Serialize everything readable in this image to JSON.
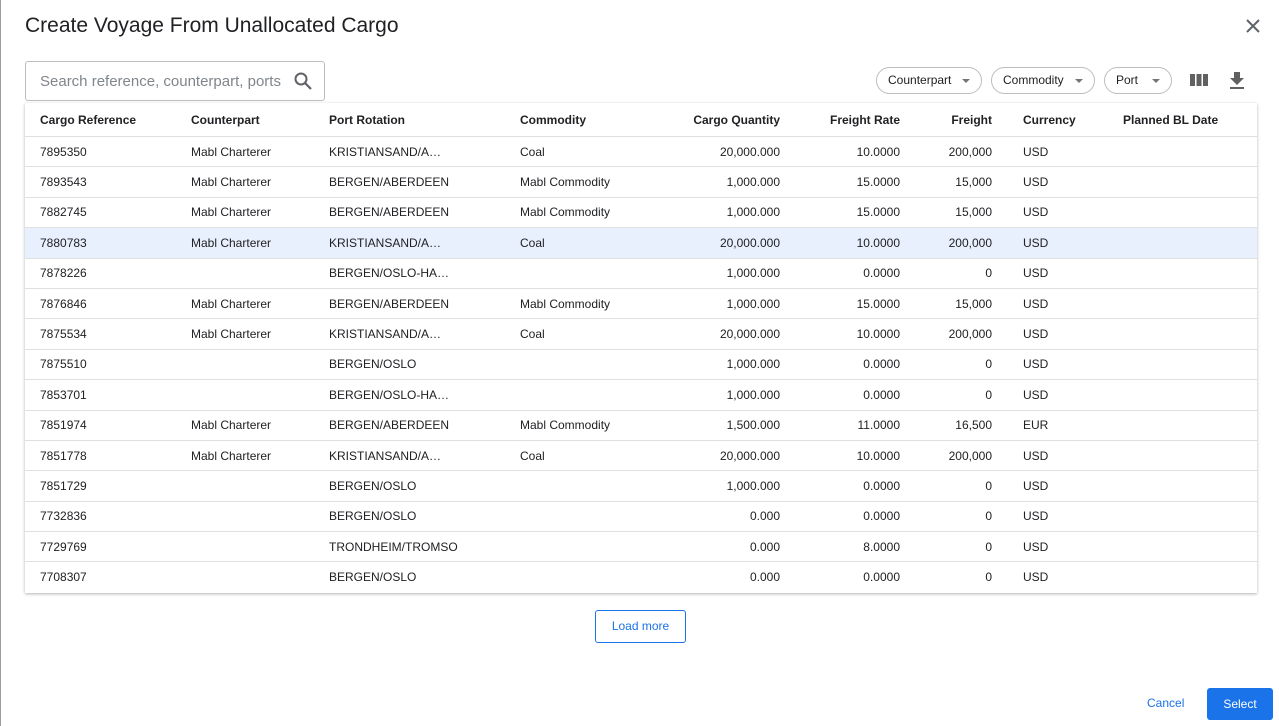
{
  "dialog": {
    "title": "Create Voyage From Unallocated Cargo",
    "search_placeholder": "Search reference, counterpart, ports",
    "filters": [
      "Counterpart",
      "Commodity",
      "Port"
    ],
    "table": {
      "columns": [
        "Cargo Reference",
        "Counterpart",
        "Port Rotation",
        "Commodity",
        "Cargo Quantity",
        "Freight Rate",
        "Freight",
        "Currency",
        "Planned BL Date"
      ],
      "rows": [
        [
          "7895350",
          "Mabl Charterer",
          "KRISTIANSAND/A…",
          "Coal",
          "20,000.000",
          "10.0000",
          "200,000",
          "USD",
          null
        ],
        [
          "7893543",
          "Mabl Charterer",
          "BERGEN/ABERDEEN",
          "Mabl Commodity",
          "1,000.000",
          "15.0000",
          "15,000",
          "USD",
          null
        ],
        [
          "7882745",
          "Mabl Charterer",
          "BERGEN/ABERDEEN",
          "Mabl Commodity",
          "1,000.000",
          "15.0000",
          "15,000",
          "USD",
          null
        ],
        [
          "7880783",
          "Mabl Charterer",
          "KRISTIANSAND/A…",
          "Coal",
          "20,000.000",
          "10.0000",
          "200,000",
          "USD",
          null
        ],
        [
          "7878226",
          null,
          "BERGEN/OSLO-HA…",
          null,
          "1,000.000",
          "0.0000",
          "0",
          "USD",
          null
        ],
        [
          "7876846",
          "Mabl Charterer",
          "BERGEN/ABERDEEN",
          "Mabl Commodity",
          "1,000.000",
          "15.0000",
          "15,000",
          "USD",
          null
        ],
        [
          "7875534",
          "Mabl Charterer",
          "KRISTIANSAND/A…",
          "Coal",
          "20,000.000",
          "10.0000",
          "200,000",
          "USD",
          null
        ],
        [
          "7875510",
          null,
          "BERGEN/OSLO",
          null,
          "1,000.000",
          "0.0000",
          "0",
          "USD",
          null
        ],
        [
          "7853701",
          null,
          "BERGEN/OSLO-HA…",
          null,
          "1,000.000",
          "0.0000",
          "0",
          "USD",
          null
        ],
        [
          "7851974",
          "Mabl Charterer",
          "BERGEN/ABERDEEN",
          "Mabl Commodity",
          "1,500.000",
          "11.0000",
          "16,500",
          "EUR",
          null
        ],
        [
          "7851778",
          "Mabl Charterer",
          "KRISTIANSAND/A…",
          "Coal",
          "20,000.000",
          "10.0000",
          "200,000",
          "USD",
          null
        ],
        [
          "7851729",
          null,
          "BERGEN/OSLO",
          null,
          "1,000.000",
          "0.0000",
          "0",
          "USD",
          null
        ],
        [
          "7732836",
          null,
          "BERGEN/OSLO",
          null,
          "0.000",
          "0.0000",
          "0",
          "USD",
          null
        ],
        [
          "7729769",
          null,
          "TRONDHEIM/TROMSO",
          null,
          "0.000",
          "8.0000",
          "0",
          "USD",
          null
        ],
        [
          "7708307",
          null,
          "BERGEN/OSLO",
          null,
          "0.000",
          "0.0000",
          "0",
          "USD",
          null
        ]
      ],
      "highlighted_row": 3
    },
    "load_more": "Load more",
    "cancel": "Cancel",
    "select": "Select"
  }
}
